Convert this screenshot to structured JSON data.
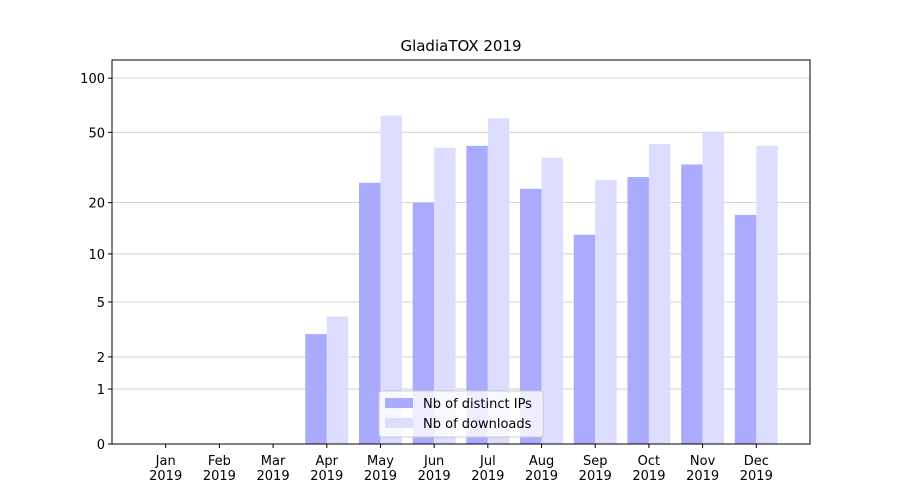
{
  "chart_data": {
    "type": "bar",
    "title": "GladiaTOX 2019",
    "categories": [
      "Jan\n2019",
      "Feb\n2019",
      "Mar\n2019",
      "Apr\n2019",
      "May\n2019",
      "Jun\n2019",
      "Jul\n2019",
      "Aug\n2019",
      "Sep\n2019",
      "Oct\n2019",
      "Nov\n2019",
      "Dec\n2019"
    ],
    "series": [
      {
        "name": "Nb of distinct IPs",
        "color": "#aaaaff",
        "values": [
          0,
          0,
          0,
          3,
          26,
          20,
          42,
          24,
          13,
          28,
          33,
          17
        ]
      },
      {
        "name": "Nb of downloads",
        "color": "#ddddff",
        "values": [
          0,
          0,
          0,
          4,
          62,
          41,
          60,
          36,
          27,
          43,
          50,
          42
        ]
      }
    ],
    "y_scale": "log1p",
    "ylim": [
      0,
      126
    ],
    "yticks": [
      0,
      1,
      2,
      5,
      10,
      20,
      50,
      100
    ],
    "grid": true,
    "legend": "lower center"
  }
}
